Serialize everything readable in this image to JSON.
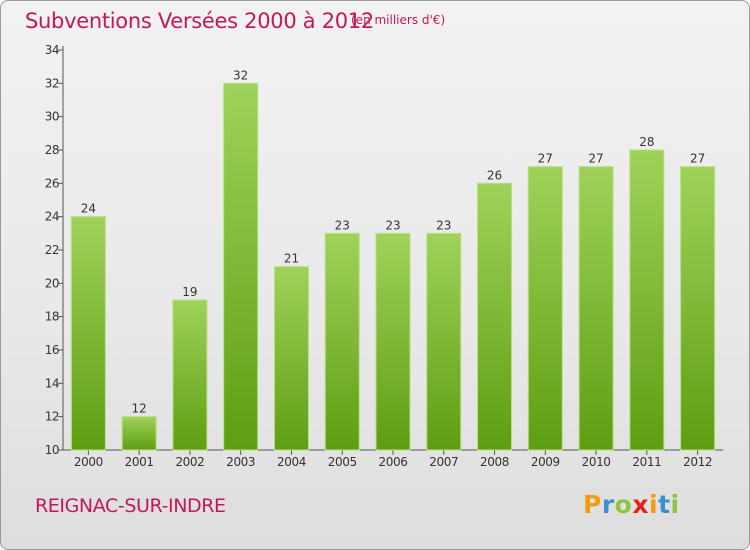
{
  "title": "Subventions Versées 2000 à 2012",
  "subtitle": "(en milliers d'€)",
  "commune": "REIGNAC-SUR-INDRE",
  "logo": {
    "letters": [
      "P",
      "r",
      "o",
      "x",
      "i",
      "t",
      "i"
    ],
    "colors": [
      "#f39c12",
      "#3f8fcf",
      "#8cc63f",
      "#e2231a",
      "#f39c12",
      "#3f8fcf",
      "#8cc63f"
    ]
  },
  "colors": {
    "bar_top": "#9fd25a",
    "bar_bottom": "#5e9e12",
    "title": "#c2185b"
  },
  "chart_data": {
    "type": "bar",
    "title": "Subventions Versées 2000 à 2012",
    "subtitle": "(en milliers d'€)",
    "categories": [
      "2000",
      "2001",
      "2002",
      "2003",
      "2004",
      "2005",
      "2006",
      "2007",
      "2008",
      "2009",
      "2010",
      "2011",
      "2012"
    ],
    "values": [
      24,
      12,
      19,
      32,
      21,
      23,
      23,
      23,
      26,
      27,
      27,
      28,
      27
    ],
    "ylim": [
      10,
      34
    ],
    "yticks": [
      10,
      12,
      14,
      16,
      18,
      20,
      22,
      24,
      26,
      28,
      30,
      32,
      34
    ],
    "grid": false,
    "data_labels": true
  }
}
